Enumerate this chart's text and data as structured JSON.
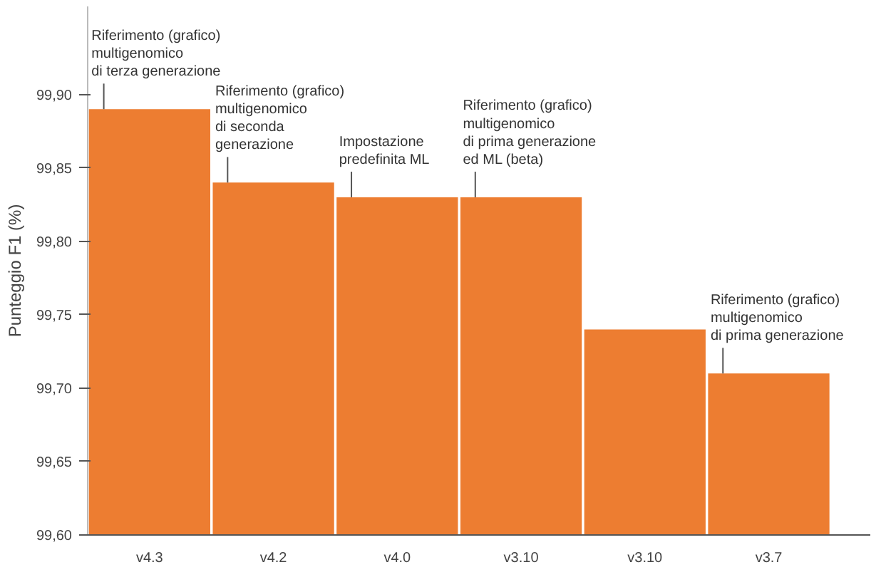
{
  "chart_data": {
    "type": "bar",
    "ylabel": "Punteggio F1 (%)",
    "categories": [
      "v4.3",
      "v4.2",
      "v4.0",
      "v3.10",
      "v3.10",
      "v3.7"
    ],
    "values": [
      99.89,
      99.84,
      99.83,
      99.83,
      99.74,
      99.71
    ],
    "color": "#ed7d31",
    "ylim": [
      99.6,
      99.96
    ],
    "yticks": [
      {
        "value": 99.6,
        "label": "99,60"
      },
      {
        "value": 99.65,
        "label": "99,65"
      },
      {
        "value": 99.7,
        "label": "99,70"
      },
      {
        "value": 99.75,
        "label": "99,75"
      },
      {
        "value": 99.8,
        "label": "99,80"
      },
      {
        "value": 99.85,
        "label": "99,85"
      },
      {
        "value": 99.9,
        "label": "99,90"
      }
    ],
    "grid": false,
    "annotations": [
      {
        "text": "Riferimento (grafico)\nmultigenomico\ndi terza generazione",
        "x": "v4.3",
        "y": 99.89
      },
      {
        "text": "Riferimento (grafico)\nmultigenomico\ndi seconda\ngenerazione",
        "x": "v4.2",
        "y": 99.84
      },
      {
        "text": "Impostazione\npredefinita ML",
        "x": "v4.0",
        "y": 99.83
      },
      {
        "text": "Riferimento (grafico)\nmultigenomico\ndi prima generazione\ned ML (beta)",
        "x": "v3.10",
        "y": 99.83
      },
      {
        "text": "Riferimento (grafico)\nmultigenomico\ndi prima generazione",
        "x": "v3.7",
        "y": 99.71
      }
    ]
  }
}
